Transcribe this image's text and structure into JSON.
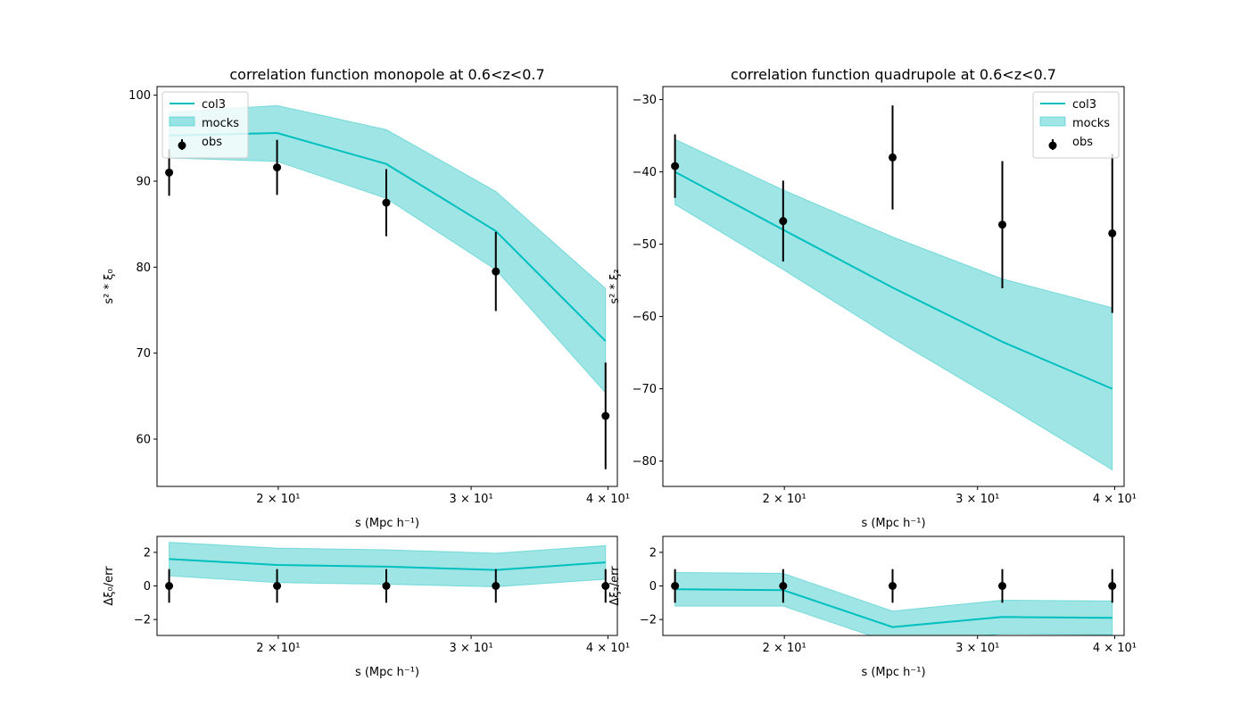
{
  "colors": {
    "model_line": "#00bfbf",
    "band_fill": "#40cccc",
    "points": "#000000"
  },
  "legend_labels": [
    "col3",
    "mocks",
    "obs"
  ],
  "chart_data": [
    {
      "id": "monopole",
      "type": "line",
      "title": "correlation function monopole at 0.6<z<0.7",
      "xlabel": "s (Mpc h⁻¹)",
      "ylabel": "s² * ξ₀",
      "xscale": "log",
      "xlim": [
        15.5,
        40.8
      ],
      "ylim": [
        54.5,
        101.0
      ],
      "x_ticks": [
        20,
        30,
        40
      ],
      "x_tick_labels": [
        "2 × 10¹",
        "3 × 10¹",
        "4 × 10¹"
      ],
      "y_ticks": [
        60,
        70,
        80,
        90,
        100
      ],
      "y_tick_labels": [
        "60",
        "70",
        "80",
        "90",
        "100"
      ],
      "legend_position": "upper left",
      "x": [
        15.9,
        19.95,
        25.1,
        31.6,
        39.8
      ],
      "series": [
        {
          "name": "col3",
          "kind": "line",
          "values": [
            95.3,
            95.6,
            92.0,
            84.2,
            71.4
          ]
        },
        {
          "name": "mocks",
          "kind": "band",
          "lower": [
            92.7,
            92.3,
            88.0,
            79.7,
            65.4
          ],
          "upper": [
            98.0,
            98.8,
            96.0,
            88.8,
            77.5
          ]
        },
        {
          "name": "obs",
          "kind": "errorbar",
          "values": [
            91.0,
            91.6,
            87.5,
            79.5,
            62.7
          ],
          "errors": [
            2.7,
            3.2,
            3.9,
            4.6,
            6.2
          ]
        }
      ]
    },
    {
      "id": "quadrupole",
      "type": "line",
      "title": "correlation function quadrupole at 0.6<z<0.7",
      "xlabel": "s (Mpc h⁻¹)",
      "ylabel": "s² * ξ₂",
      "xscale": "log",
      "xlim": [
        15.5,
        40.8
      ],
      "ylim": [
        -83.5,
        -28.2
      ],
      "x_ticks": [
        20,
        30,
        40
      ],
      "x_tick_labels": [
        "2 × 10¹",
        "3 × 10¹",
        "4 × 10¹"
      ],
      "y_ticks": [
        -80,
        -70,
        -60,
        -50,
        -40,
        -30
      ],
      "y_tick_labels": [
        "−80",
        "−70",
        "−60",
        "−50",
        "−40",
        "−30"
      ],
      "legend_position": "upper right",
      "x": [
        15.9,
        19.95,
        25.1,
        31.6,
        39.8
      ],
      "series": [
        {
          "name": "col3",
          "kind": "line",
          "values": [
            -40.0,
            -48.0,
            -56.0,
            -63.5,
            -70.0
          ]
        },
        {
          "name": "mocks",
          "kind": "band",
          "lower": [
            -44.5,
            -53.5,
            -63.0,
            -72.0,
            -81.2
          ],
          "upper": [
            -35.5,
            -42.5,
            -49.0,
            -54.8,
            -58.8
          ]
        },
        {
          "name": "obs",
          "kind": "errorbar",
          "values": [
            -39.2,
            -46.8,
            -38.0,
            -47.3,
            -48.5
          ],
          "errors": [
            4.4,
            5.6,
            7.2,
            8.8,
            11.0
          ]
        }
      ]
    },
    {
      "id": "monopole-residual",
      "type": "line",
      "title": "",
      "xlabel": "s (Mpc h⁻¹)",
      "ylabel": "Δξ₀/err",
      "xscale": "log",
      "xlim": [
        15.5,
        40.8
      ],
      "ylim": [
        -2.95,
        2.95
      ],
      "x_ticks": [
        20,
        30,
        40
      ],
      "x_tick_labels": [
        "2 × 10¹",
        "3 × 10¹",
        "4 × 10¹"
      ],
      "y_ticks": [
        -2,
        0,
        2
      ],
      "y_tick_labels": [
        "−2",
        "0",
        "2"
      ],
      "x": [
        15.9,
        19.95,
        25.1,
        31.6,
        39.8
      ],
      "series": [
        {
          "name": "col3",
          "kind": "line",
          "values": [
            1.6,
            1.25,
            1.15,
            0.95,
            1.4
          ]
        },
        {
          "name": "mocks",
          "kind": "band",
          "lower": [
            0.6,
            0.2,
            0.1,
            -0.05,
            0.4
          ],
          "upper": [
            2.6,
            2.25,
            2.15,
            1.95,
            2.4
          ]
        },
        {
          "name": "obs",
          "kind": "errorbar",
          "values": [
            0,
            0,
            0,
            0,
            0
          ],
          "errors": [
            1,
            1,
            1,
            1,
            1
          ]
        }
      ]
    },
    {
      "id": "quadrupole-residual",
      "type": "line",
      "title": "",
      "xlabel": "s (Mpc h⁻¹)",
      "ylabel": "Δξ₂/err",
      "xscale": "log",
      "xlim": [
        15.5,
        40.8
      ],
      "ylim": [
        -2.95,
        2.95
      ],
      "x_ticks": [
        20,
        30,
        40
      ],
      "x_tick_labels": [
        "2 × 10¹",
        "3 × 10¹",
        "4 × 10¹"
      ],
      "y_ticks": [
        -2,
        0,
        2
      ],
      "y_tick_labels": [
        "−2",
        "0",
        "2"
      ],
      "x": [
        15.9,
        19.95,
        25.1,
        31.6,
        39.8
      ],
      "series": [
        {
          "name": "col3",
          "kind": "line",
          "values": [
            -0.2,
            -0.25,
            -2.45,
            -1.85,
            -1.9
          ]
        },
        {
          "name": "mocks",
          "kind": "band",
          "lower": [
            -1.2,
            -1.2,
            -3.4,
            -2.85,
            -2.9
          ],
          "upper": [
            0.8,
            0.75,
            -1.5,
            -0.85,
            -0.9
          ]
        },
        {
          "name": "obs",
          "kind": "errorbar",
          "values": [
            0,
            0,
            0,
            0,
            0
          ],
          "errors": [
            1,
            1,
            1,
            1,
            1
          ]
        }
      ]
    }
  ]
}
